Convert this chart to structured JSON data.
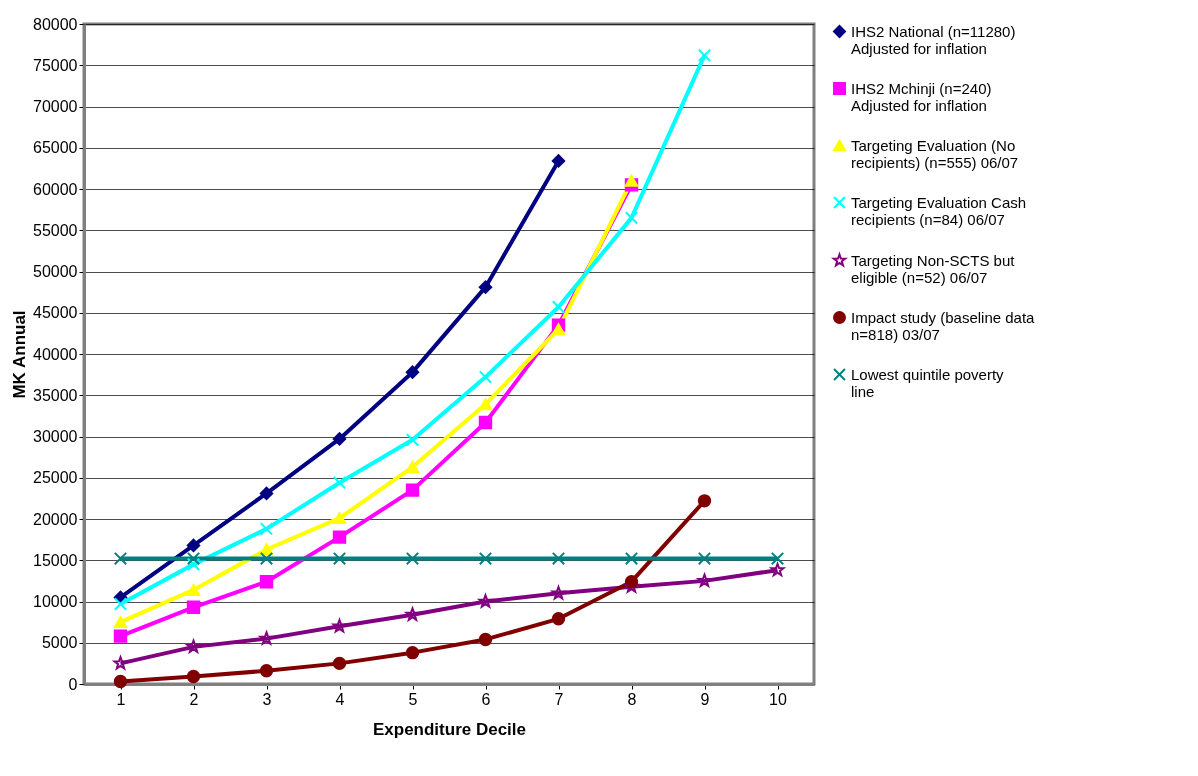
{
  "chart_data": {
    "type": "line",
    "xlabel": "Expenditure Decile",
    "ylabel": "MK Annual",
    "categories": [
      "1",
      "2",
      "3",
      "4",
      "5",
      "6",
      "7",
      "8",
      "9",
      "10"
    ],
    "ylim": [
      0,
      80000
    ],
    "yticks": [
      0,
      5000,
      10000,
      15000,
      20000,
      25000,
      30000,
      35000,
      40000,
      45000,
      50000,
      55000,
      60000,
      65000,
      70000,
      75000,
      80000
    ],
    "grid": "y",
    "legend": "right",
    "series": [
      {
        "name": "IHS2 National (n=11280) Adjusted for inflation",
        "color": "#000080",
        "marker": "diamond",
        "values": [
          10500,
          16800,
          23100,
          29700,
          37800,
          48100,
          63400,
          null,
          null,
          null
        ]
      },
      {
        "name": "IHS2 Mchinji (n=240) Adjusted for inflation",
        "color": "#ff00ff",
        "marker": "square",
        "values": [
          5800,
          9300,
          12400,
          17800,
          23500,
          31700,
          43500,
          60500,
          null,
          null
        ]
      },
      {
        "name": "Targeting Evaluation (No recipients) (n=555) 06/07",
        "color": "#ffff00",
        "marker": "triangle",
        "values": [
          7500,
          11400,
          16300,
          20100,
          26300,
          33900,
          43000,
          61000,
          null,
          null
        ]
      },
      {
        "name": "Targeting Evaluation Cash recipients (n=84) 06/07",
        "color": "#00ffff",
        "marker": "cross",
        "values": [
          9700,
          14500,
          18800,
          24400,
          29600,
          37200,
          45700,
          56500,
          76200,
          null
        ]
      },
      {
        "name": "Targeting Non-SCTS but eligible (n=52) 06/07",
        "color": "#800080",
        "marker": "star",
        "values": [
          2500,
          4500,
          5500,
          7000,
          8400,
          10000,
          11000,
          11800,
          12500,
          13800
        ]
      },
      {
        "name": "Impact study (baseline data n=818) 03/07",
        "color": "#800000",
        "marker": "circle",
        "values": [
          300,
          900,
          1600,
          2500,
          3800,
          5400,
          7900,
          12400,
          22200,
          null
        ]
      },
      {
        "name": "Lowest quintile poverty line",
        "color": "#008080",
        "marker": "cross",
        "values": [
          15200,
          15200,
          15200,
          15200,
          15200,
          15200,
          15200,
          15200,
          15200,
          15200
        ]
      }
    ]
  }
}
